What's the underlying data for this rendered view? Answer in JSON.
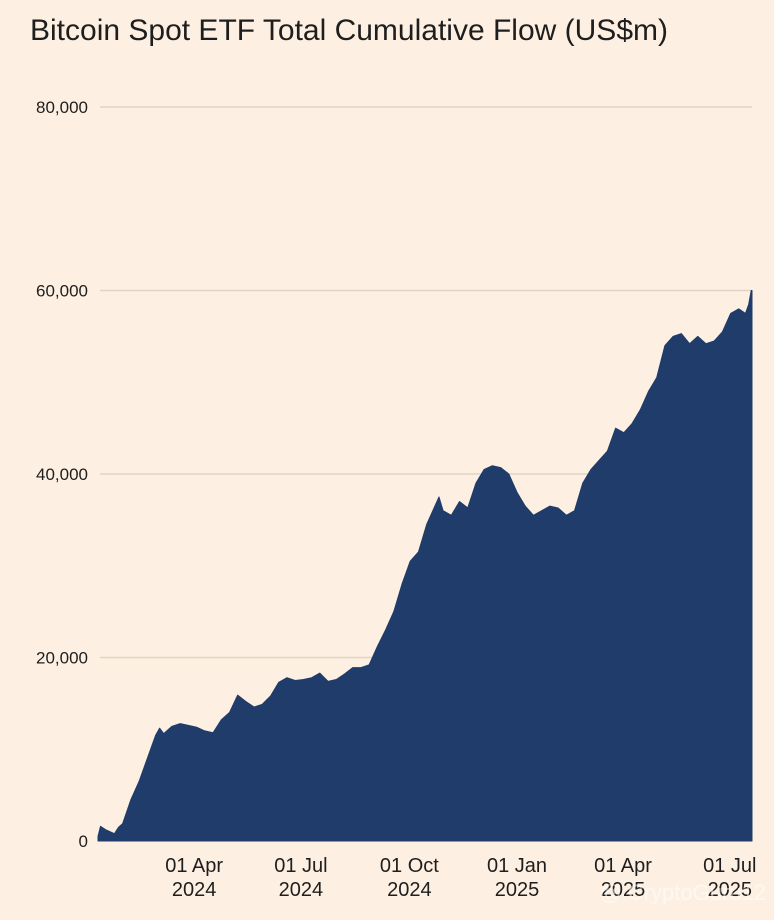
{
  "chart_data": {
    "type": "area",
    "title": "Bitcoin Spot ETF Total Cumulative Flow (US$m)",
    "xlabel": "",
    "ylabel": "",
    "ylim": [
      0,
      80000
    ],
    "grid": true,
    "y_ticks": [
      {
        "value": 0,
        "label": "0"
      },
      {
        "value": 20000,
        "label": "20,000"
      },
      {
        "value": 40000,
        "label": "40,000"
      },
      {
        "value": 60000,
        "label": "60,000"
      },
      {
        "value": 80000,
        "label": "80,000"
      }
    ],
    "x_ticks": [
      {
        "week": 11.7,
        "line1": "01 Apr",
        "line2": "2024"
      },
      {
        "week": 24.7,
        "line1": "01 Jul",
        "line2": "2024"
      },
      {
        "week": 37.9,
        "line1": "01 Oct",
        "line2": "2024"
      },
      {
        "week": 51.0,
        "line1": "01 Jan",
        "line2": "2025"
      },
      {
        "week": 63.9,
        "line1": "01 Apr",
        "line2": "2025"
      },
      {
        "week": 76.9,
        "line1": "01 Jul",
        "line2": "2025"
      }
    ],
    "x_unit": "weeks since 11 Jan 2024",
    "series": [
      {
        "name": "Total Cumulative Flow (US$m)",
        "color": "#1f3c6b",
        "points": [
          [
            0,
            500
          ],
          [
            0.3,
            1600
          ],
          [
            1,
            1200
          ],
          [
            2,
            800
          ],
          [
            2.5,
            1500
          ],
          [
            3,
            1900
          ],
          [
            4,
            4500
          ],
          [
            5,
            6500
          ],
          [
            6,
            9000
          ],
          [
            7,
            11500
          ],
          [
            7.5,
            12300
          ],
          [
            8,
            11700
          ],
          [
            9,
            12500
          ],
          [
            10,
            12800
          ],
          [
            11,
            12600
          ],
          [
            12,
            12400
          ],
          [
            13,
            12000
          ],
          [
            14,
            11800
          ],
          [
            15,
            13200
          ],
          [
            16,
            14000
          ],
          [
            17,
            15900
          ],
          [
            18,
            15200
          ],
          [
            19,
            14600
          ],
          [
            20,
            14900
          ],
          [
            21,
            15800
          ],
          [
            22,
            17300
          ],
          [
            23,
            17800
          ],
          [
            24,
            17500
          ],
          [
            25,
            17600
          ],
          [
            26,
            17800
          ],
          [
            27,
            18300
          ],
          [
            28,
            17400
          ],
          [
            29,
            17600
          ],
          [
            30,
            18200
          ],
          [
            31,
            18900
          ],
          [
            32,
            18900
          ],
          [
            33,
            19200
          ],
          [
            34,
            21200
          ],
          [
            35,
            23000
          ],
          [
            36,
            25000
          ],
          [
            37,
            28000
          ],
          [
            38,
            30500
          ],
          [
            39,
            31500
          ],
          [
            40,
            34500
          ],
          [
            41,
            36500
          ],
          [
            41.5,
            37500
          ],
          [
            42,
            36000
          ],
          [
            43,
            35500
          ],
          [
            44,
            37000
          ],
          [
            45,
            36300
          ],
          [
            46,
            39000
          ],
          [
            47,
            40500
          ],
          [
            48,
            40900
          ],
          [
            49,
            40700
          ],
          [
            50,
            40000
          ],
          [
            51,
            38000
          ],
          [
            52,
            36500
          ],
          [
            53,
            35500
          ],
          [
            54,
            36000
          ],
          [
            55,
            36500
          ],
          [
            56,
            36300
          ],
          [
            57,
            35500
          ],
          [
            58,
            36000
          ],
          [
            59,
            39000
          ],
          [
            60,
            40500
          ],
          [
            61,
            41500
          ],
          [
            62,
            42500
          ],
          [
            63,
            45000
          ],
          [
            64,
            44500
          ],
          [
            65,
            45500
          ],
          [
            66,
            47000
          ],
          [
            67,
            49000
          ],
          [
            68,
            50500
          ],
          [
            69,
            54000
          ],
          [
            70,
            55000
          ],
          [
            71,
            55300
          ],
          [
            72,
            54200
          ],
          [
            73,
            55000
          ],
          [
            74,
            54200
          ],
          [
            75,
            54500
          ],
          [
            76,
            55500
          ],
          [
            77,
            57500
          ],
          [
            78,
            58000
          ],
          [
            78.8,
            57500
          ],
          [
            79.2,
            58500
          ],
          [
            79.5,
            60000
          ],
          [
            79.6,
            60000
          ]
        ]
      }
    ]
  },
  "watermark": "@ CryptoGuru12"
}
